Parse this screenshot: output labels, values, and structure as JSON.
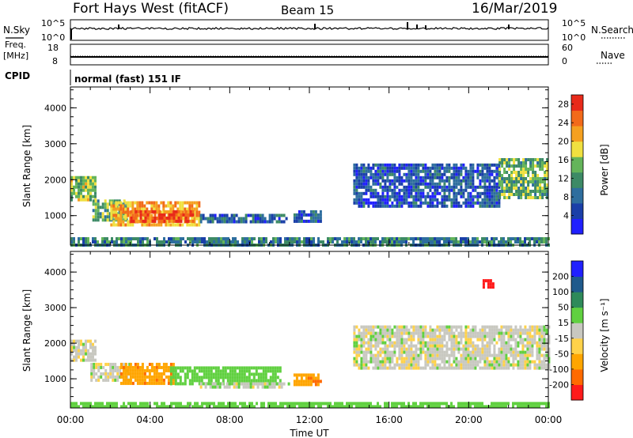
{
  "header": {
    "title": "Fort Hays West (fitACF)",
    "beam": "Beam 15",
    "date": "16/Mar/2019"
  },
  "params": {
    "nsky_label": "N.Sky",
    "nsearch_label": "N.Search",
    "nsky_ticks": [
      "10^5",
      "10^0"
    ],
    "nsearch_ticks": [
      "10^5",
      "10^0"
    ],
    "freq_label": [
      "Freq.",
      "[MHz]"
    ],
    "freq_ticks": [
      "18",
      "8"
    ],
    "nave_label": "Nave",
    "nave_ticks": [
      "60",
      "0"
    ],
    "cpid_label": "CPID",
    "cpid_text": "normal (fast) 151 IF"
  },
  "colors": {
    "power": [
      "#2020ff",
      "#1a3fa8",
      "#2e6e9e",
      "#3d8a66",
      "#64b45a",
      "#f0e040",
      "#f5a020",
      "#f26a1a",
      "#e82a1a"
    ],
    "velocity": [
      "#ff1a1a",
      "#ff6a00",
      "#ffa500",
      "#ffd24a",
      "#c8c8c0",
      "#60d040",
      "#2e8a5a",
      "#1f5a8c",
      "#2020ff"
    ],
    "ground_scatter": "#c8c8c0"
  },
  "chart_data": [
    {
      "type": "heatmap",
      "name": "power",
      "xlabel": "",
      "ylabel": "Slant Range [km]",
      "x_ticks": [
        "00:00",
        "04:00",
        "08:00",
        "12:00",
        "16:00",
        "20:00",
        "00:00"
      ],
      "xlim_hours": [
        0,
        24
      ],
      "y_ticks": [
        1000,
        2000,
        3000,
        4000
      ],
      "ylim": [
        180,
        4580
      ],
      "colorbar": {
        "label": "Power [dB]",
        "ticks": [
          4,
          8,
          12,
          16,
          20,
          24,
          28
        ],
        "range": [
          0,
          30
        ]
      },
      "features": [
        {
          "t0": 0.0,
          "t1": 1.2,
          "r0": 1450,
          "r1": 2100,
          "value": 16
        },
        {
          "t0": 1.1,
          "t1": 2.8,
          "r0": 900,
          "r1": 1450,
          "value": 14
        },
        {
          "t0": 2.0,
          "t1": 6.5,
          "r0": 780,
          "r1": 1400,
          "value": 22
        },
        {
          "t0": 3.0,
          "t1": 6.2,
          "r0": 800,
          "r1": 1150,
          "value": 27
        },
        {
          "t0": 6.5,
          "t1": 10.8,
          "r0": 800,
          "r1": 1050,
          "value": 8
        },
        {
          "t0": 11.2,
          "t1": 12.6,
          "r0": 880,
          "r1": 1150,
          "value": 7
        },
        {
          "t0": 14.2,
          "t1": 21.5,
          "r0": 1300,
          "r1": 2450,
          "value": 6
        },
        {
          "t0": 21.5,
          "t1": 24.0,
          "r0": 1500,
          "r1": 2600,
          "value": 14
        },
        {
          "t0": 0.0,
          "t1": 24.0,
          "r0": 200,
          "r1": 400,
          "value": 10
        }
      ]
    },
    {
      "type": "heatmap",
      "name": "velocity",
      "xlabel": "Time UT",
      "ylabel": "Slant Range [km]",
      "x_ticks": [
        "00:00",
        "04:00",
        "08:00",
        "12:00",
        "16:00",
        "20:00",
        "00:00"
      ],
      "xlim_hours": [
        0,
        24
      ],
      "y_ticks": [
        1000,
        2000,
        3000,
        4000
      ],
      "ylim": [
        180,
        4580
      ],
      "colorbar": {
        "label": "Velocity [m s⁻¹]",
        "ticks": [
          200,
          100,
          50,
          15,
          -15,
          -50,
          -100,
          -200
        ]
      },
      "features": [
        {
          "t0": 0.0,
          "t1": 1.2,
          "r0": 1500,
          "r1": 2100,
          "value": 0
        },
        {
          "t0": 1.0,
          "t1": 3.0,
          "r0": 950,
          "r1": 1450,
          "value": 0
        },
        {
          "t0": 2.5,
          "t1": 5.2,
          "r0": 900,
          "r1": 1450,
          "value": -60
        },
        {
          "t0": 5.0,
          "t1": 10.5,
          "r0": 850,
          "r1": 1350,
          "value": 40
        },
        {
          "t0": 6.5,
          "t1": 11.0,
          "r0": 750,
          "r1": 900,
          "value": 0
        },
        {
          "t0": 11.2,
          "t1": 12.6,
          "r0": 850,
          "r1": 1150,
          "value": -60
        },
        {
          "t0": 14.2,
          "t1": 24.0,
          "r0": 1300,
          "r1": 2500,
          "value": 0
        },
        {
          "t0": 20.7,
          "t1": 21.2,
          "r0": 3550,
          "r1": 3800,
          "value": -220
        },
        {
          "t0": 0.0,
          "t1": 24.0,
          "r0": 200,
          "r1": 350,
          "value": 40
        }
      ]
    }
  ]
}
